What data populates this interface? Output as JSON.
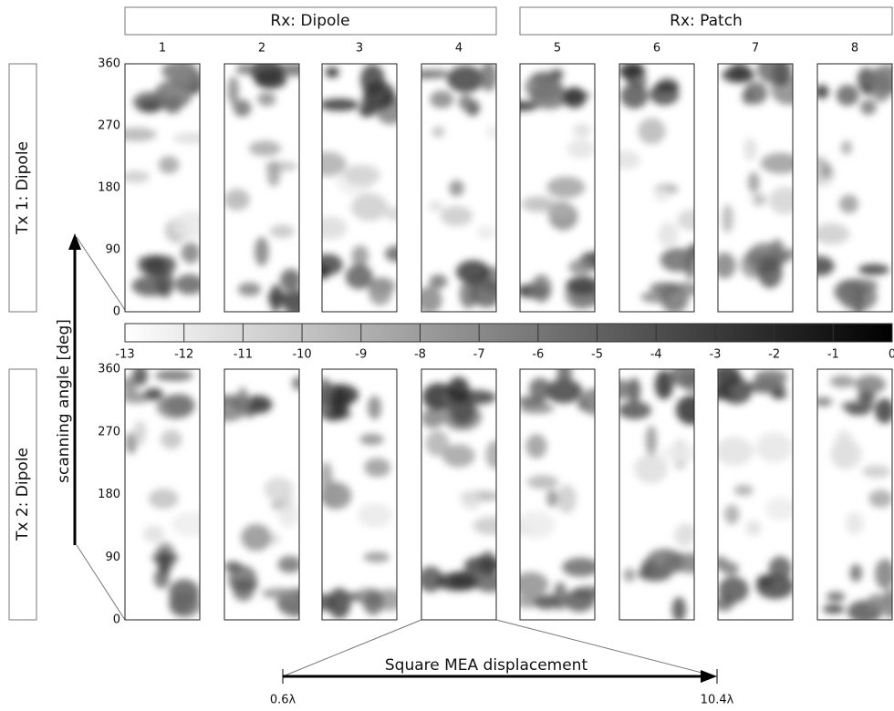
{
  "header": {
    "groups": [
      "Rx: Dipole",
      "Rx: Patch"
    ],
    "columns": [
      1,
      2,
      3,
      4,
      5,
      6,
      7,
      8
    ]
  },
  "rows": [
    {
      "label": "Tx 1: Dipole"
    },
    {
      "label": "Tx 2: Dipole"
    }
  ],
  "y_axis": {
    "label": "scanning angle [deg]",
    "ticks": [
      0,
      90,
      180,
      270,
      360
    ]
  },
  "colorbar": {
    "ticks": [
      -13,
      -12,
      -11,
      -10,
      -9,
      -8,
      -7,
      -6,
      -5,
      -4,
      -3,
      -2,
      -1,
      0
    ]
  },
  "displacement": {
    "label": "Square MEA displacement",
    "start": "0.6λ",
    "end": "10.4λ"
  }
}
